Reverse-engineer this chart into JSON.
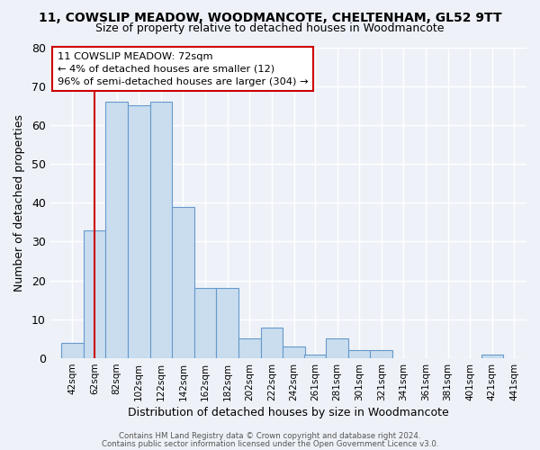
{
  "title": "11, COWSLIP MEADOW, WOODMANCOTE, CHELTENHAM, GL52 9TT",
  "subtitle": "Size of property relative to detached houses in Woodmancote",
  "xlabel": "Distribution of detached houses by size in Woodmancote",
  "ylabel": "Number of detached properties",
  "bin_labels": [
    "42sqm",
    "62sqm",
    "82sqm",
    "102sqm",
    "122sqm",
    "142sqm",
    "162sqm",
    "182sqm",
    "202sqm",
    "222sqm",
    "242sqm",
    "261sqm",
    "281sqm",
    "301sqm",
    "321sqm",
    "341sqm",
    "361sqm",
    "381sqm",
    "401sqm",
    "421sqm",
    "441sqm"
  ],
  "bar_heights": [
    4,
    33,
    66,
    65,
    66,
    39,
    18,
    18,
    5,
    8,
    3,
    1,
    5,
    2,
    2,
    0,
    0,
    0,
    0,
    1,
    0
  ],
  "bar_color": "#c9ddef",
  "bar_edge_color": "#6699cc",
  "vline_color": "#cc0000",
  "ylim": [
    0,
    80
  ],
  "yticks": [
    0,
    10,
    20,
    30,
    40,
    50,
    60,
    70,
    80
  ],
  "annotation_title": "11 COWSLIP MEADOW: 72sqm",
  "annotation_line1": "← 4% of detached houses are smaller (12)",
  "annotation_line2": "96% of semi-detached houses are larger (304) →",
  "annotation_box_facecolor": "#ffffff",
  "annotation_border_color": "#cc0000",
  "footer_line1": "Contains HM Land Registry data © Crown copyright and database right 2024.",
  "footer_line2": "Contains public sector information licensed under the Open Government Licence v3.0.",
  "background_color": "#eef2f8",
  "grid_color": "#ffffff",
  "bin_edges": [
    42,
    62,
    82,
    102,
    122,
    142,
    162,
    182,
    202,
    222,
    242,
    261,
    281,
    301,
    321,
    341,
    361,
    381,
    401,
    421,
    441,
    461
  ],
  "bin_width": 20,
  "vline_x": 72
}
